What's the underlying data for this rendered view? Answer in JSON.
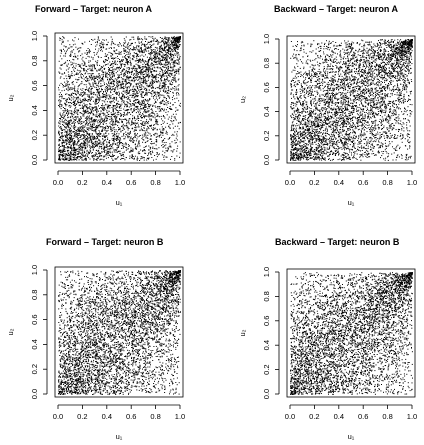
{
  "chart_data": [
    {
      "type": "scatter",
      "title": "Forward – Target: neuron A",
      "xlabel": "u₁",
      "ylabel": "u₂",
      "xlim": [
        0,
        1
      ],
      "ylim": [
        0,
        1
      ],
      "xticks": [
        "0.0",
        "0.2",
        "0.4",
        "0.6",
        "0.8",
        "1.0"
      ],
      "yticks": [
        "0.0",
        "0.2",
        "0.4",
        "0.6",
        "0.8",
        "1.0"
      ],
      "grid": false,
      "dependence": "positive upper-tail dependence (dense points near u1=u2=1, sparse upper-left corner)",
      "n_points_approx": 5000
    },
    {
      "type": "scatter",
      "title": "Backward – Target: neuron A",
      "xlabel": "u₁",
      "ylabel": "u₂",
      "xlim": [
        0,
        1
      ],
      "ylim": [
        0,
        1
      ],
      "xticks": [
        "0.0",
        "0.2",
        "0.4",
        "0.6",
        "0.8",
        "1.0"
      ],
      "yticks": [
        "0.0",
        "0.2",
        "0.4",
        "0.6",
        "0.8",
        "1.0"
      ],
      "grid": false,
      "dependence": "positive upper-tail dependence",
      "n_points_approx": 5000
    },
    {
      "type": "scatter",
      "title": "Forward – Target: neuron B",
      "xlabel": "u₁",
      "ylabel": "u₂",
      "xlim": [
        0,
        1
      ],
      "ylim": [
        0,
        1
      ],
      "xticks": [
        "0.0",
        "0.2",
        "0.4",
        "0.6",
        "0.8",
        "1.0"
      ],
      "yticks": [
        "0.0",
        "0.2",
        "0.4",
        "0.6",
        "0.8",
        "1.0"
      ],
      "grid": false,
      "dependence": "positive upper-tail dependence",
      "n_points_approx": 5000
    },
    {
      "type": "scatter",
      "title": "Backward – Target: neuron B",
      "xlabel": "u₁",
      "ylabel": "u₂",
      "xlim": [
        0,
        1
      ],
      "ylim": [
        0,
        1
      ],
      "xticks": [
        "0.0",
        "0.2",
        "0.4",
        "0.6",
        "0.8",
        "1.0"
      ],
      "yticks": [
        "0.0",
        "0.2",
        "0.4",
        "0.6",
        "0.8",
        "1.0"
      ],
      "grid": false,
      "dependence": "positive upper-tail dependence",
      "n_points_approx": 5000
    }
  ],
  "colors": {
    "points": "#000000",
    "axes": "#000000",
    "background": "#ffffff"
  }
}
